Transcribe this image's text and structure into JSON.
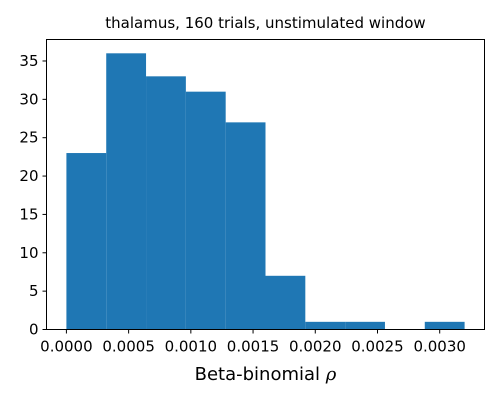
{
  "chart_data": {
    "type": "bar",
    "title": "thalamus, 160 trials, unstimulated window",
    "xlabel_text": "Beta-binomial ",
    "xlabel_symbol": "ρ",
    "ylabel": "",
    "bin_edges": [
      0.0,
      0.00032,
      0.00064,
      0.00096,
      0.00128,
      0.0016,
      0.00192,
      0.00224,
      0.00256,
      0.00288,
      0.0032
    ],
    "counts": [
      23,
      36,
      33,
      31,
      27,
      7,
      1,
      1,
      0,
      1
    ],
    "xlim": [
      -0.00016,
      0.00336
    ],
    "ylim": [
      0,
      37.8
    ],
    "x_ticks": [
      {
        "value": 0.0,
        "label": "0.0000"
      },
      {
        "value": 0.0005,
        "label": "0.0005"
      },
      {
        "value": 0.001,
        "label": "0.0010"
      },
      {
        "value": 0.0015,
        "label": "0.0015"
      },
      {
        "value": 0.002,
        "label": "0.0020"
      },
      {
        "value": 0.0025,
        "label": "0.0025"
      },
      {
        "value": 0.003,
        "label": "0.0030"
      }
    ],
    "y_ticks": [
      {
        "value": 0,
        "label": "0"
      },
      {
        "value": 5,
        "label": "5"
      },
      {
        "value": 10,
        "label": "10"
      },
      {
        "value": 15,
        "label": "15"
      },
      {
        "value": 20,
        "label": "20"
      },
      {
        "value": 25,
        "label": "25"
      },
      {
        "value": 30,
        "label": "30"
      },
      {
        "value": 35,
        "label": "35"
      }
    ],
    "bar_color": "#1f77b4",
    "grid": false,
    "legend": "none"
  }
}
